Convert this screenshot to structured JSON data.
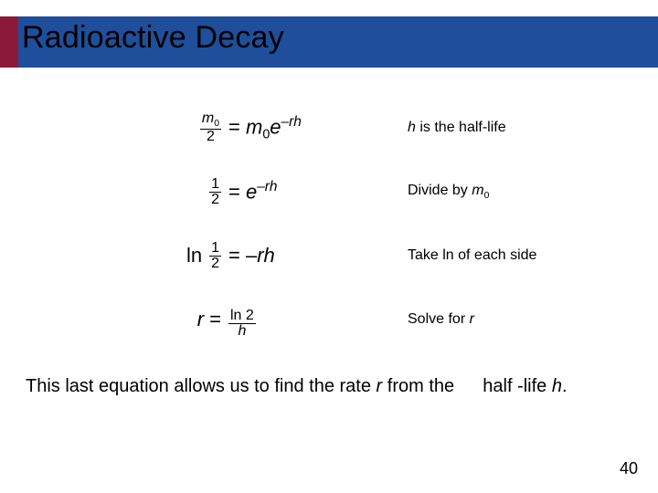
{
  "colors": {
    "title_bar": "#1f4e9b",
    "title_accent": "#8b1a3a",
    "background": "#ffffff",
    "text": "#000000"
  },
  "title": "Radioactive Decay",
  "rows": [
    {
      "lhs_prefix": "",
      "frac": {
        "num": "m",
        "num_sub": "0",
        "den": "2",
        "italic": true,
        "den_italic": false
      },
      "eq": "=",
      "rhs_html": "m<sub class=\"sub\">0</sub>e<sup class=\"sup\">&ndash;rh</sup>",
      "annotation_html": "<span class=\"sym\">h</span> is the half-life"
    },
    {
      "lhs_prefix": "",
      "frac": {
        "num": "1",
        "den": "2",
        "italic": false
      },
      "eq": "=",
      "rhs_html": "e<sup class=\"sup\">&ndash;rh</sup>",
      "annotation_html": "Divide by <span class=\"sym\">m</span><sub class=\"sub\">0</sub>"
    },
    {
      "lhs_prefix": "ln",
      "frac": {
        "num": "1",
        "den": "2",
        "italic": false
      },
      "eq": "=",
      "rhs_html": "&ndash;rh",
      "annotation_html": "Take ln of each side"
    },
    {
      "lhs_prefix_it": "r",
      "lhs_suffix": " =",
      "frac_rhs": {
        "num": "ln 2",
        "den_it": "h"
      },
      "annotation_html": "Solve for <span class=\"sym\">r</span>"
    }
  ],
  "summary_html": "This last equation allows us to find the rate <span class=\"it\">r</span> from the   half -life <span class=\"it\">h</span>.",
  "page_number": "40"
}
